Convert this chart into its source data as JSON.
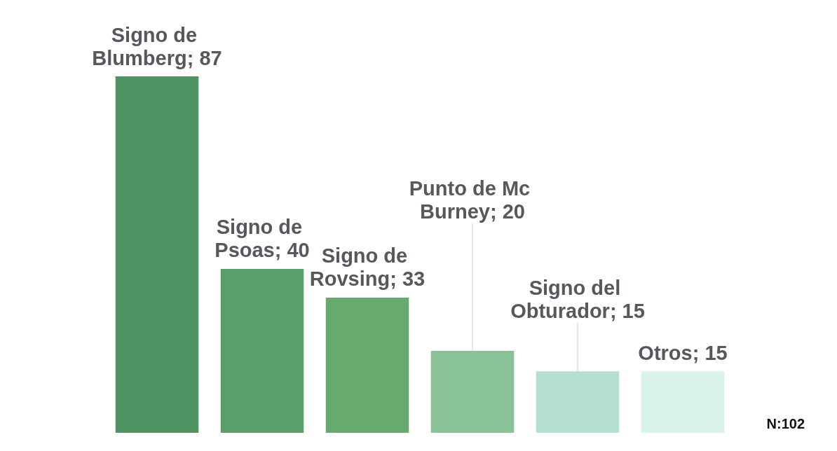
{
  "chart_data": {
    "type": "bar",
    "categories": [
      null,
      null,
      null,
      null,
      null,
      null
    ],
    "values": [
      87,
      40,
      33,
      20,
      15,
      15
    ],
    "value_labels": [
      "Signo de Blumberg; 87",
      "Signo de Psoas; 40",
      "Signo de Rovsing; 33",
      "Punto de Mc Burney; 20",
      "Signo del Obturador; 15",
      "Otros; 15"
    ],
    "colors": [
      "#4f9462",
      "#5a9f69",
      "#66aa70",
      "#88c296",
      "#b5dfd0",
      "#d9f3eb"
    ],
    "annotations": [
      "N:102"
    ]
  }
}
